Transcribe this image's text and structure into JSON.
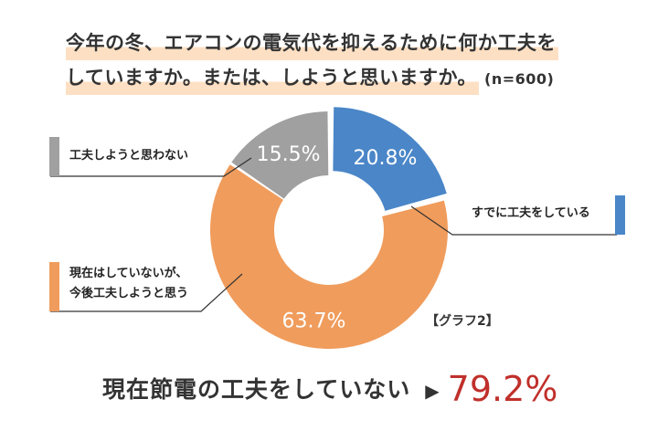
{
  "title": {
    "line1": "今年の冬、エアコンの電気代を抑えるために何か工夫を",
    "line2": "していますか。または、しようと思いますか。",
    "n": "(n=600)"
  },
  "chart_data": {
    "type": "pie",
    "donut": true,
    "slices": [
      {
        "label": "すでに工夫をしている",
        "value": 20.8,
        "display": "20.8%",
        "color": "#4a86c8"
      },
      {
        "label_lines": [
          "現在はしていないが、",
          "今後工夫しようと思う"
        ],
        "value": 63.7,
        "display": "63.7%",
        "color": "#f09c5c"
      },
      {
        "label": "工夫しようと思わない",
        "value": 15.5,
        "display": "15.5%",
        "color": "#a0a0a0"
      }
    ],
    "graph_label": "【グラフ2】"
  },
  "summary": {
    "text": "現在節電の工夫をしていない",
    "arrow": "▶",
    "value": "79.2%"
  }
}
